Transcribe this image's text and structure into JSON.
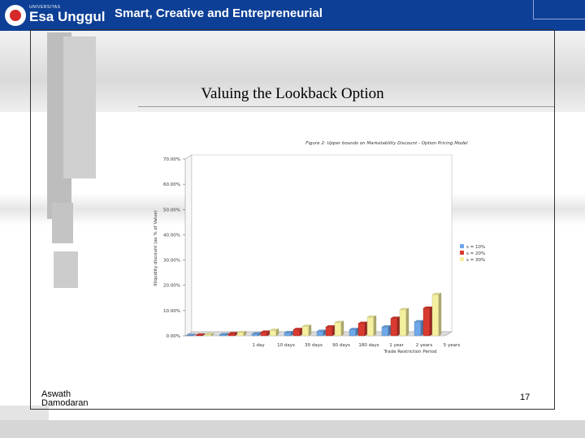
{
  "header": {
    "logo_small": "UNIVERSITAS",
    "logo_name": "Esa Unggul",
    "tagline": "Smart, Creative and Entrepreneurial"
  },
  "slide": {
    "title": "Valuing the Lookback Option",
    "author": "Aswath Damodaran",
    "page_number": "17"
  },
  "colors": {
    "header_bg": "#0d3f96",
    "s10": "#6fa8e8",
    "s20": "#d93a2f",
    "s30": "#f5f0a0"
  },
  "chart_data": {
    "type": "bar",
    "title": "Figure 2: Upper bounds on Marketability Discount - Option Pricing Model",
    "xlabel": "Trade Restriction Period",
    "ylabel": "Illiquidity discount (as % of Value)",
    "categories": [
      "1 day",
      "10 days",
      "30 days",
      "90 days",
      "180 days",
      "1 year",
      "2 years",
      "5 years"
    ],
    "series": [
      {
        "name": "s = 10%",
        "values": [
          0.0013,
          0.0041,
          0.0071,
          0.0123,
          0.0174,
          0.0245,
          0.0346,
          0.055
        ]
      },
      {
        "name": "s = 20%",
        "values": [
          0.0025,
          0.0082,
          0.0142,
          0.0246,
          0.0348,
          0.049,
          0.069,
          0.109
        ]
      },
      {
        "name": "s = 30%",
        "values": [
          0.004,
          0.0123,
          0.0213,
          0.0369,
          0.0522,
          0.0733,
          0.1031,
          0.163
        ]
      }
    ],
    "legend_labels": [
      "s = 10%",
      "s = 20%",
      "s = 30%"
    ],
    "legend_position": "right",
    "ylim": [
      0,
      0.7
    ],
    "yticks": [
      "0.00%",
      "10.00%",
      "20.00%",
      "30.00%",
      "40.00%",
      "50.00%",
      "60.00%",
      "70.00%"
    ],
    "grid": false,
    "style": "3d-clustered-bar"
  }
}
